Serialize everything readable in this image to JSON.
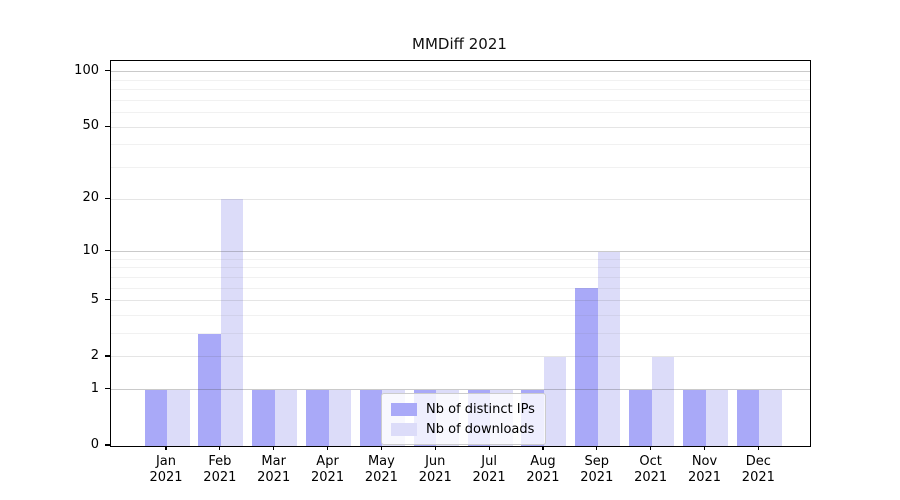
{
  "title": "MMDiff 2021",
  "legend": {
    "items": [
      {
        "label": "Nb of distinct IPs",
        "color": "#a9a9f8"
      },
      {
        "label": "Nb of downloads",
        "color": "#dcdcf9"
      }
    ]
  },
  "axes": {
    "y_tick_labels": [
      "0",
      "1",
      "2",
      "5",
      "10",
      "20",
      "50",
      "100"
    ],
    "x_year": "2021",
    "x_months": [
      "Jan",
      "Feb",
      "Mar",
      "Apr",
      "May",
      "Jun",
      "Jul",
      "Aug",
      "Sep",
      "Oct",
      "Nov",
      "Dec"
    ]
  },
  "chart_data": {
    "type": "bar",
    "title": "MMDiff 2021",
    "categories": [
      "Jan 2021",
      "Feb 2021",
      "Mar 2021",
      "Apr 2021",
      "May 2021",
      "Jun 2021",
      "Jul 2021",
      "Aug 2021",
      "Sep 2021",
      "Oct 2021",
      "Nov 2021",
      "Dec 2021"
    ],
    "series": [
      {
        "name": "Nb of distinct IPs",
        "color": "#a9a9f8",
        "values": [
          1,
          3,
          1,
          1,
          1,
          1,
          1,
          1,
          6,
          1,
          1,
          1
        ]
      },
      {
        "name": "Nb of downloads",
        "color": "#dcdcf9",
        "values": [
          1,
          20,
          1,
          1,
          1,
          1,
          1,
          2,
          10,
          2,
          1,
          1
        ]
      }
    ],
    "xlabel": "",
    "ylabel": "",
    "y_ticks": [
      0,
      1,
      2,
      5,
      10,
      20,
      50,
      100
    ],
    "ylim": [
      0,
      114
    ],
    "yscale": "log-like: position proportional to log10(value+1), zero at baseline",
    "grid": "horizontal major and minor gridlines, light gray, drawn over bars",
    "legend_position": "inside lower-center",
    "bar_layout": "grouped pairs, touching, centered on month tick"
  }
}
